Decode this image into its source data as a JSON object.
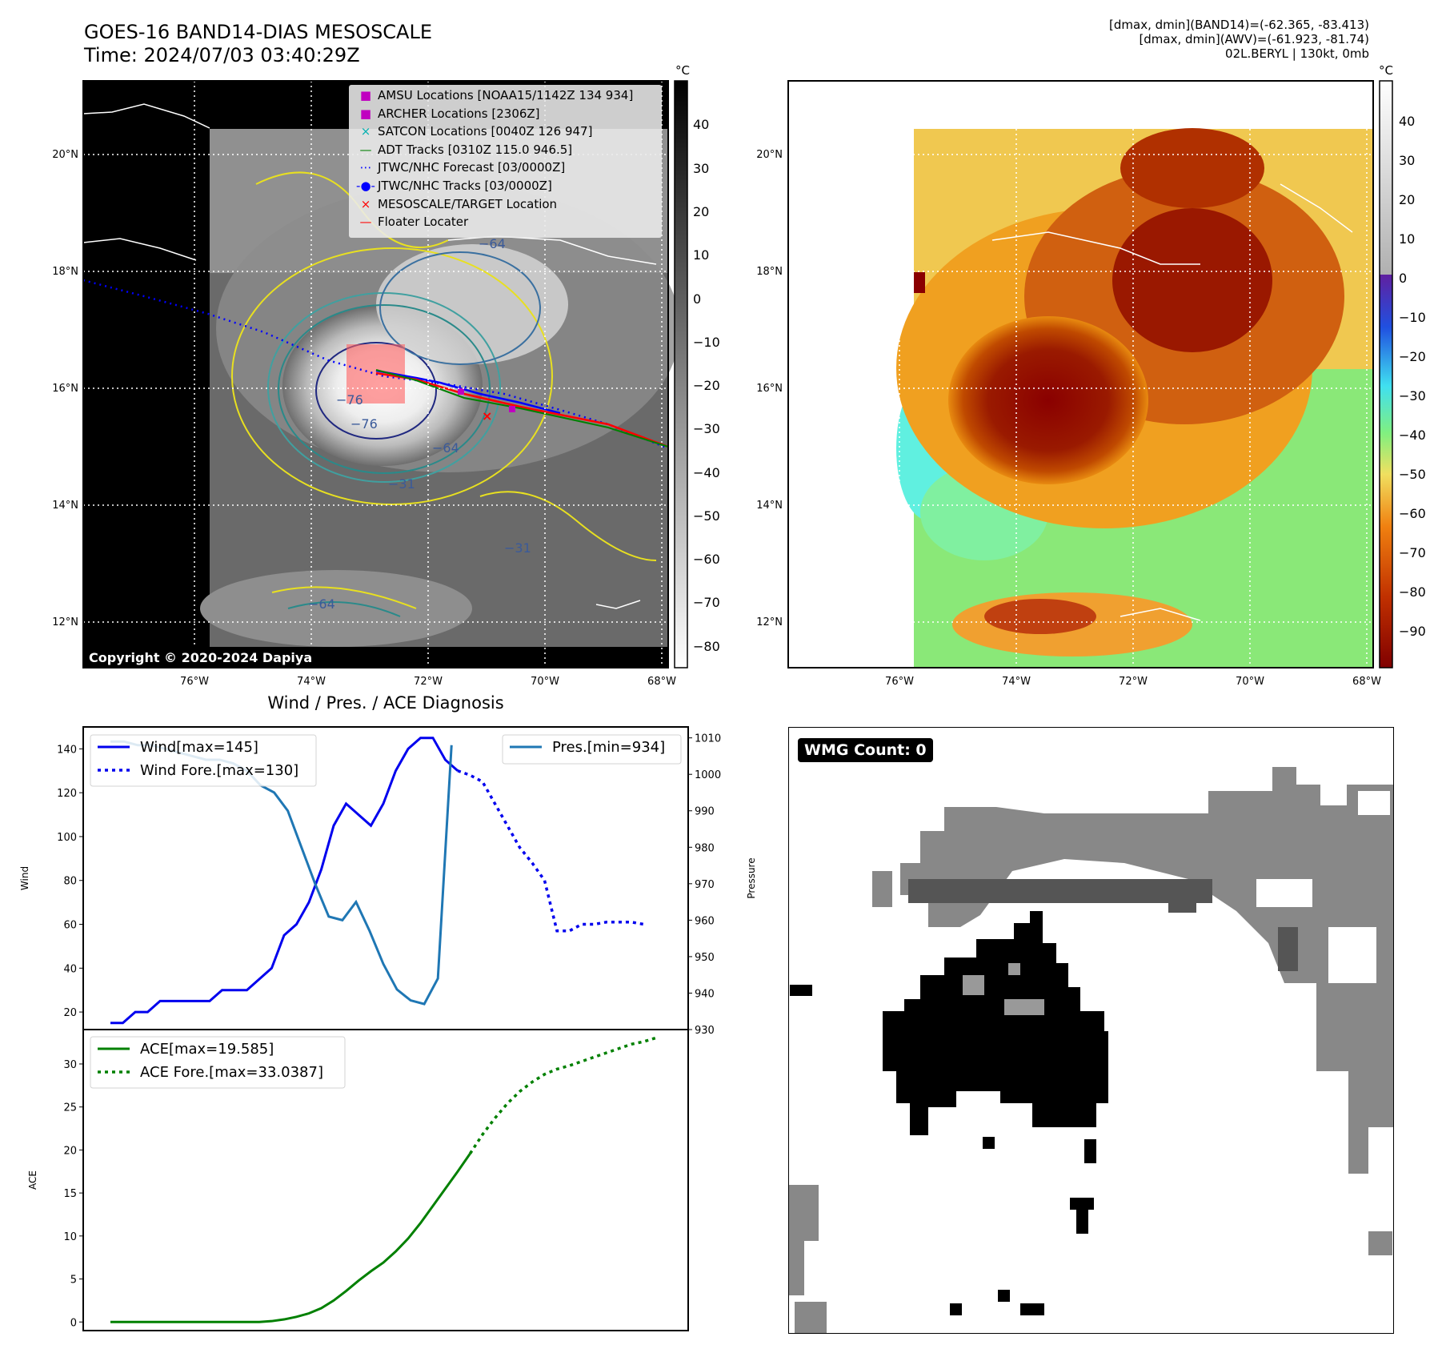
{
  "header": {
    "title_line1": "GOES-16 BAND14-DIAS MESOSCALE",
    "title_line2": "Time: 2024/07/03 03:40:29Z",
    "info_line1": "[dmax, dmin](BAND14)=(-62.365, -83.413)",
    "info_line2": "[dmax, dmin](AWV)=(-61.923, -81.74)",
    "info_line3": "02L.BERYL | 130kt, 0mb"
  },
  "map": {
    "lon_ticks": [
      "76°W",
      "74°W",
      "72°W",
      "70°W",
      "68°W"
    ],
    "lat_ticks": [
      "20°N",
      "18°N",
      "16°N",
      "14°N",
      "12°N"
    ],
    "colorbar_unit": "°C",
    "colorbar_ticks_gray": [
      "40",
      "30",
      "20",
      "10",
      "0",
      "−10",
      "−20",
      "−30",
      "−40",
      "−50",
      "−60",
      "−70",
      "−80"
    ],
    "colorbar_ticks_color": [
      "40",
      "30",
      "20",
      "10",
      "0",
      "−10",
      "−20",
      "−30",
      "−40",
      "−50",
      "−60",
      "−70",
      "−80",
      "−90"
    ],
    "copyright": "Copyright © 2020-2024 Dapiya",
    "contour_labels": [
      "−64",
      "−76",
      "−76",
      "−64",
      "−64",
      "−31",
      "−31"
    ],
    "legend": [
      {
        "label": "AMSU Locations [NOAA15/1142Z 134 934]",
        "marker": "square",
        "color": "#c000c0"
      },
      {
        "label": "ARCHER Locations [2306Z]",
        "marker": "square",
        "color": "#c000c0"
      },
      {
        "label": "SATCON Locations [0040Z 126 947]",
        "marker": "x",
        "color": "#00b0b0"
      },
      {
        "label": "ADT Tracks [0310Z 115.0 946.5]",
        "marker": "line",
        "color": "#008000"
      },
      {
        "label": "JTWC/NHC Forecast [03/0000Z]",
        "marker": "dotted",
        "color": "#0000ff"
      },
      {
        "label": "JTWC/NHC Tracks [03/0000Z]",
        "marker": "line-dot",
        "color": "#0000ff"
      },
      {
        "label": "MESOSCALE/TARGET Location",
        "marker": "x",
        "color": "#ff0000"
      },
      {
        "label": "Floater Locater",
        "marker": "line",
        "color": "#ff0000"
      }
    ]
  },
  "diag": {
    "title": "Wind / Pres. / ACE Diagnosis",
    "ylabel_wind": "Wind",
    "ylabel_pres": "Pressure",
    "ylabel_ace": "ACE",
    "wind_ticks": [
      "140",
      "120",
      "100",
      "80",
      "60",
      "40",
      "20"
    ],
    "pres_ticks": [
      "1010",
      "1000",
      "990",
      "980",
      "970",
      "960",
      "950",
      "940",
      "930"
    ],
    "ace_ticks": [
      "30",
      "25",
      "20",
      "15",
      "10",
      "5",
      "0"
    ],
    "legend_wind": "Wind[max=145]",
    "legend_wind_fore": "Wind Fore.[max=130]",
    "legend_pres": "Pres.[min=934]",
    "legend_ace": "ACE[max=19.585]",
    "legend_ace_fore": "ACE Fore.[max=33.0387]"
  },
  "wmg": {
    "label": "WMG Count: 0"
  },
  "chart_data": [
    {
      "type": "line",
      "title": "Wind / Pres. / ACE Diagnosis",
      "ylabel": "Wind",
      "ylim": [
        12,
        150
      ],
      "series": [
        {
          "name": "Wind[max=145]",
          "color": "#0000ee",
          "style": "solid",
          "values": [
            15,
            15,
            20,
            20,
            25,
            25,
            25,
            25,
            25,
            30,
            30,
            30,
            35,
            40,
            55,
            60,
            70,
            85,
            105,
            115,
            110,
            105,
            115,
            130,
            140,
            145,
            145,
            135,
            130
          ]
        },
        {
          "name": "Wind Fore.[max=130]",
          "color": "#0000ee",
          "style": "dotted",
          "start_index": 28,
          "values": [
            130,
            128,
            125,
            115,
            105,
            95,
            88,
            80,
            57,
            57,
            60,
            60,
            61,
            61,
            61,
            60
          ]
        }
      ],
      "secondary": {
        "ylabel": "Pressure",
        "ylim": [
          930,
          1013
        ],
        "series": [
          {
            "name": "Pres.[min=934]",
            "color": "#1f77b4",
            "values": [
              1009,
              1009,
              1008,
              1008,
              1007,
              1006,
              1005,
              1004,
              1004,
              1003,
              1001,
              997,
              995,
              990,
              980,
              970,
              961,
              960,
              965,
              957,
              948,
              941,
              938,
              937,
              944,
              1008
            ]
          }
        ]
      }
    },
    {
      "type": "line",
      "ylabel": "ACE",
      "ylim": [
        -1,
        34
      ],
      "series": [
        {
          "name": "ACE[max=19.585]",
          "color": "#008000",
          "style": "solid",
          "values": [
            0,
            0,
            0,
            0,
            0,
            0,
            0,
            0,
            0,
            0,
            0,
            0,
            0,
            0.1,
            0.3,
            0.6,
            1,
            1.6,
            2.5,
            3.6,
            4.8,
            5.9,
            6.9,
            8.2,
            9.7,
            11.5,
            13.5,
            15.5,
            17.5,
            19.585
          ]
        },
        {
          "name": "ACE Fore.[max=33.0387]",
          "color": "#008000",
          "style": "dotted",
          "start_index": 29,
          "values": [
            19.585,
            21.8,
            23.7,
            25.4,
            26.8,
            27.9,
            28.8,
            29.4,
            29.8,
            30.3,
            30.8,
            31.3,
            31.8,
            32.3,
            32.6,
            33.0387
          ]
        }
      ]
    }
  ]
}
